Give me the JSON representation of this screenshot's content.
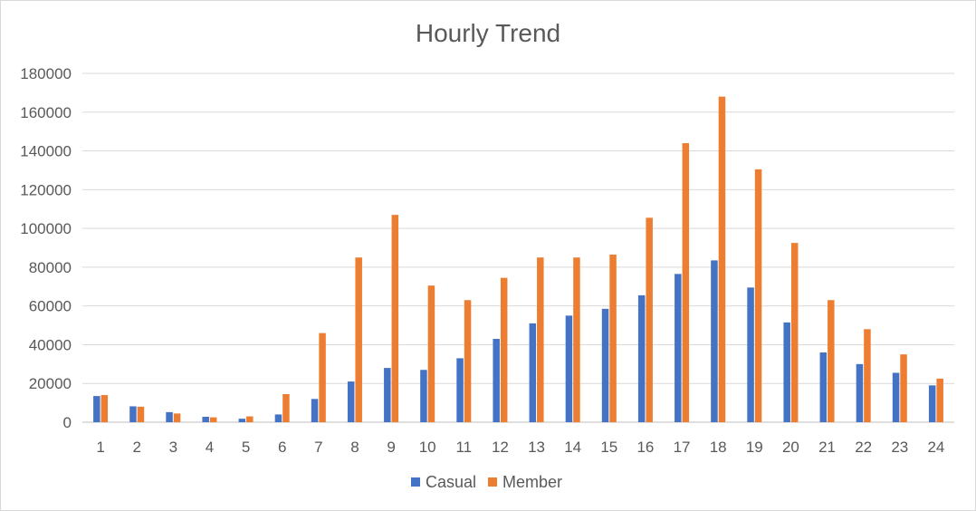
{
  "chart_data": {
    "type": "bar",
    "title": "Hourly Trend",
    "xlabel": "",
    "ylabel": "",
    "ylim": [
      0,
      180000
    ],
    "yticks": [
      "0",
      "20000",
      "40000",
      "60000",
      "80000",
      "100000",
      "120000",
      "140000",
      "160000",
      "180000"
    ],
    "grid": true,
    "legend_position": "bottom",
    "categories": [
      "1",
      "2",
      "3",
      "4",
      "5",
      "6",
      "7",
      "8",
      "9",
      "10",
      "11",
      "12",
      "13",
      "14",
      "15",
      "16",
      "17",
      "18",
      "19",
      "20",
      "21",
      "22",
      "23",
      "24"
    ],
    "series": [
      {
        "name": "Casual",
        "color": "#4472c4",
        "values": [
          13500,
          8200,
          5200,
          2800,
          1800,
          4000,
          12000,
          21000,
          28000,
          27000,
          33000,
          43000,
          51000,
          55000,
          58500,
          65500,
          76500,
          83500,
          69500,
          51500,
          36000,
          30000,
          25500,
          19000
        ]
      },
      {
        "name": "Member",
        "color": "#ed7d31",
        "values": [
          14000,
          8000,
          4500,
          2500,
          3000,
          14500,
          46000,
          85000,
          107000,
          70500,
          63000,
          74500,
          85000,
          85000,
          86500,
          105500,
          144000,
          168000,
          130500,
          92500,
          63000,
          48000,
          35000,
          22500
        ]
      }
    ]
  }
}
